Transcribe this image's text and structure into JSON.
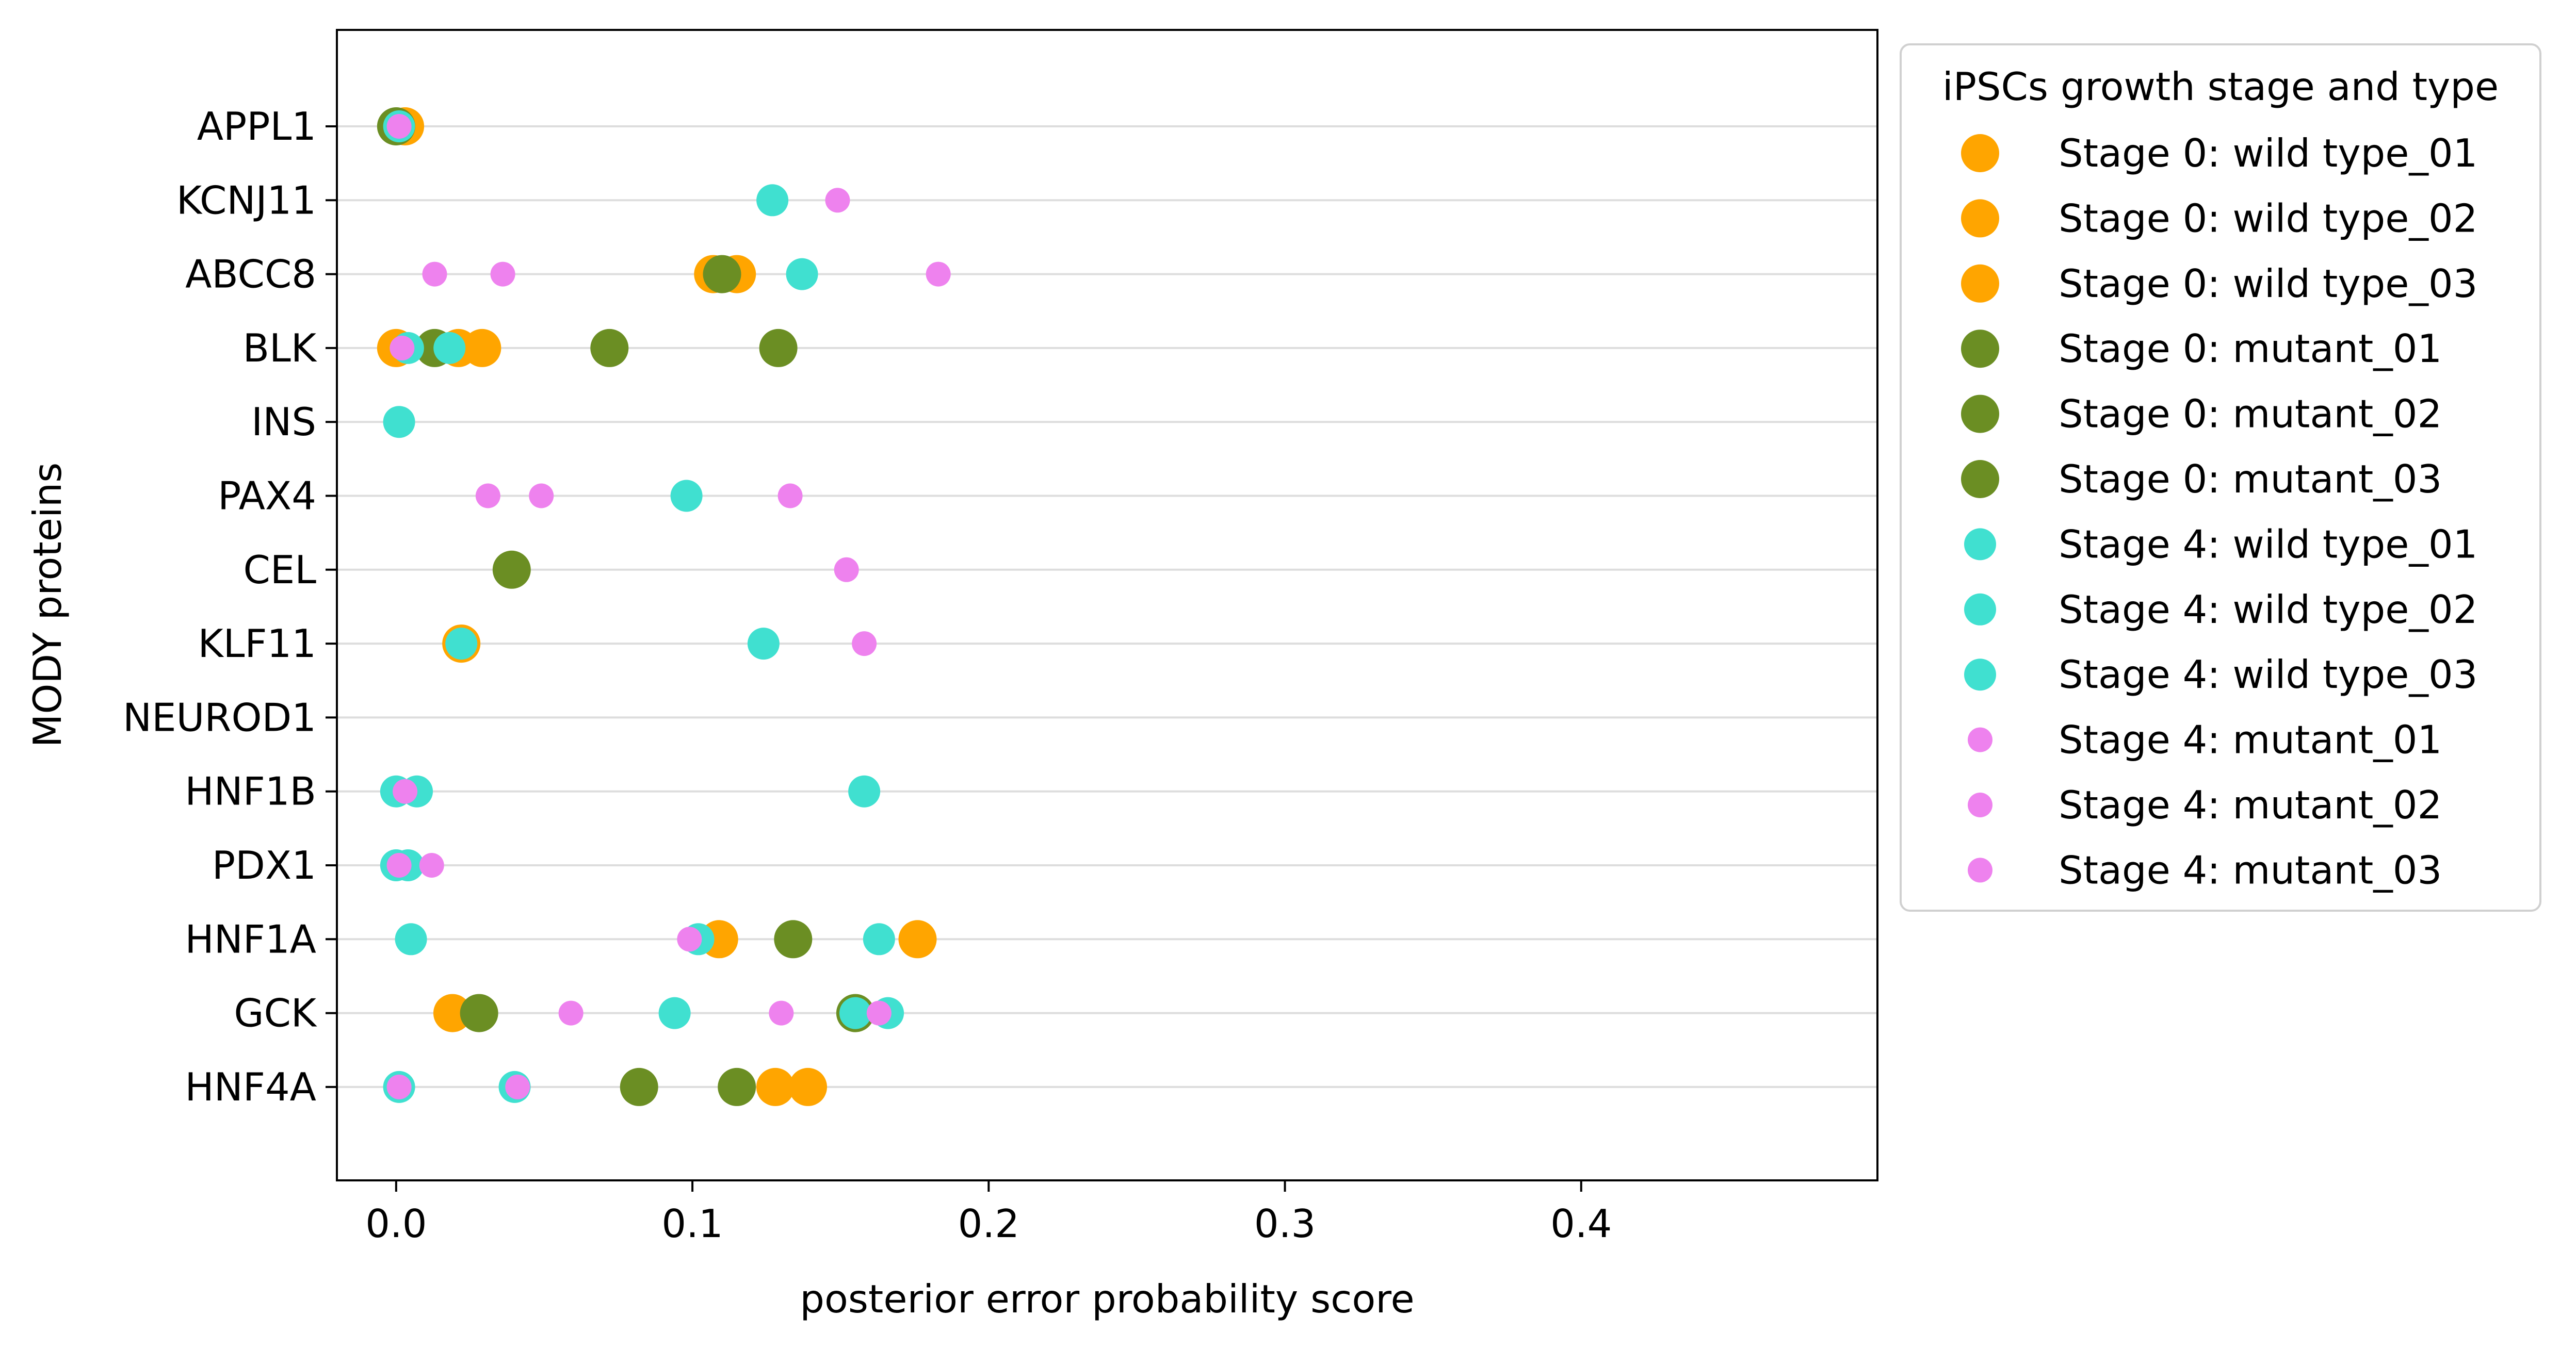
{
  "chart_data": {
    "type": "scatter",
    "xlabel": "posterior error probability score",
    "ylabel": "MODY proteins",
    "xlim": [
      -0.02,
      0.5
    ],
    "x_ticks": [
      0.0,
      0.1,
      0.2,
      0.3,
      0.4
    ],
    "x_tick_labels": [
      "0.0",
      "0.1",
      "0.2",
      "0.3",
      "0.4"
    ],
    "categories": [
      "APPL1",
      "KCNJ11",
      "ABCC8",
      "BLK",
      "INS",
      "PAX4",
      "CEL",
      "KLF11",
      "NEUROD1",
      "HNF1B",
      "PDX1",
      "HNF1A",
      "GCK",
      "HNF4A"
    ],
    "grid": "horizontal",
    "legend": {
      "title": "iPSCs growth stage and type",
      "placement": "outside-right-top"
    },
    "colors": {
      "wild_type_stage0": "#FFA500",
      "mutant_stage0": "#6B8E23",
      "wild_type_stage4": "#40E0D0",
      "mutant_stage4": "#EE82EE",
      "grid": "#dddddd"
    },
    "series": [
      {
        "name": "Stage 0: wild type_01",
        "color": "#FFA500",
        "size": "large",
        "points": [
          {
            "y": "APPL1",
            "x": 0.003
          },
          {
            "y": "ABCC8",
            "x": 0.107
          },
          {
            "y": "BLK",
            "x": 0.0
          },
          {
            "y": "KLF11",
            "x": 0.022
          },
          {
            "y": "HNF1A",
            "x": 0.109
          },
          {
            "y": "GCK",
            "x": 0.019
          },
          {
            "y": "HNF4A",
            "x": 0.128
          }
        ]
      },
      {
        "name": "Stage 0: wild type_02",
        "color": "#FFA500",
        "size": "large",
        "points": [
          {
            "y": "ABCC8",
            "x": 0.115
          },
          {
            "y": "BLK",
            "x": 0.021
          },
          {
            "y": "HNF1A",
            "x": 0.176
          },
          {
            "y": "HNF4A",
            "x": 0.139
          }
        ]
      },
      {
        "name": "Stage 0: wild type_03",
        "color": "#FFA500",
        "size": "large",
        "points": [
          {
            "y": "BLK",
            "x": 0.029
          }
        ]
      },
      {
        "name": "Stage 0: mutant_01",
        "color": "#6B8E23",
        "size": "large",
        "points": [
          {
            "y": "APPL1",
            "x": 0.0
          },
          {
            "y": "ABCC8",
            "x": 0.11
          },
          {
            "y": "BLK",
            "x": 0.072
          },
          {
            "y": "CEL",
            "x": 0.039
          },
          {
            "y": "HNF1A",
            "x": 0.134
          },
          {
            "y": "GCK",
            "x": 0.028
          },
          {
            "y": "HNF4A",
            "x": 0.082
          }
        ]
      },
      {
        "name": "Stage 0: mutant_02",
        "color": "#6B8E23",
        "size": "large",
        "points": [
          {
            "y": "BLK",
            "x": 0.129
          },
          {
            "y": "GCK",
            "x": 0.155
          },
          {
            "y": "HNF4A",
            "x": 0.115
          }
        ]
      },
      {
        "name": "Stage 0: mutant_03",
        "color": "#6B8E23",
        "size": "large",
        "points": [
          {
            "y": "BLK",
            "x": 0.013
          }
        ]
      },
      {
        "name": "Stage 4: wild type_01",
        "color": "#40E0D0",
        "size": "medium",
        "points": [
          {
            "y": "APPL1",
            "x": 0.001
          },
          {
            "y": "KCNJ11",
            "x": 0.127
          },
          {
            "y": "ABCC8",
            "x": 0.137
          },
          {
            "y": "BLK",
            "x": 0.004
          },
          {
            "y": "INS",
            "x": 0.001
          },
          {
            "y": "PAX4",
            "x": 0.098
          },
          {
            "y": "KLF11",
            "x": 0.022
          },
          {
            "y": "HNF1B",
            "x": 0.0
          },
          {
            "y": "PDX1",
            "x": 0.0
          },
          {
            "y": "HNF1A",
            "x": 0.005
          },
          {
            "y": "GCK",
            "x": 0.094
          },
          {
            "y": "HNF4A",
            "x": 0.001
          }
        ]
      },
      {
        "name": "Stage 4: wild type_02",
        "color": "#40E0D0",
        "size": "medium",
        "points": [
          {
            "y": "BLK",
            "x": 0.018
          },
          {
            "y": "KLF11",
            "x": 0.124
          },
          {
            "y": "HNF1B",
            "x": 0.007
          },
          {
            "y": "PDX1",
            "x": 0.004
          },
          {
            "y": "HNF1A",
            "x": 0.102
          },
          {
            "y": "GCK",
            "x": 0.155
          },
          {
            "y": "HNF4A",
            "x": 0.04
          }
        ]
      },
      {
        "name": "Stage 4: wild type_03",
        "color": "#40E0D0",
        "size": "medium",
        "points": [
          {
            "y": "HNF1B",
            "x": 0.158
          },
          {
            "y": "HNF1A",
            "x": 0.163
          },
          {
            "y": "GCK",
            "x": 0.166
          }
        ]
      },
      {
        "name": "Stage 4: mutant_01",
        "color": "#EE82EE",
        "size": "small",
        "points": [
          {
            "y": "APPL1",
            "x": 0.001
          },
          {
            "y": "KCNJ11",
            "x": 0.149
          },
          {
            "y": "ABCC8",
            "x": 0.013
          },
          {
            "y": "BLK",
            "x": 0.002
          },
          {
            "y": "PAX4",
            "x": 0.031
          },
          {
            "y": "CEL",
            "x": 0.152
          },
          {
            "y": "KLF11",
            "x": 0.158
          },
          {
            "y": "HNF1B",
            "x": 0.003
          },
          {
            "y": "PDX1",
            "x": 0.001
          },
          {
            "y": "HNF1A",
            "x": 0.099
          },
          {
            "y": "GCK",
            "x": 0.059
          },
          {
            "y": "HNF4A",
            "x": 0.001
          }
        ]
      },
      {
        "name": "Stage 4: mutant_02",
        "color": "#EE82EE",
        "size": "small",
        "points": [
          {
            "y": "ABCC8",
            "x": 0.036
          },
          {
            "y": "PAX4",
            "x": 0.049
          },
          {
            "y": "PDX1",
            "x": 0.012
          },
          {
            "y": "GCK",
            "x": 0.13
          },
          {
            "y": "HNF4A",
            "x": 0.041
          }
        ]
      },
      {
        "name": "Stage 4: mutant_03",
        "color": "#EE82EE",
        "size": "small",
        "points": [
          {
            "y": "ABCC8",
            "x": 0.183
          },
          {
            "y": "PAX4",
            "x": 0.133
          },
          {
            "y": "GCK",
            "x": 0.163
          }
        ]
      }
    ]
  }
}
